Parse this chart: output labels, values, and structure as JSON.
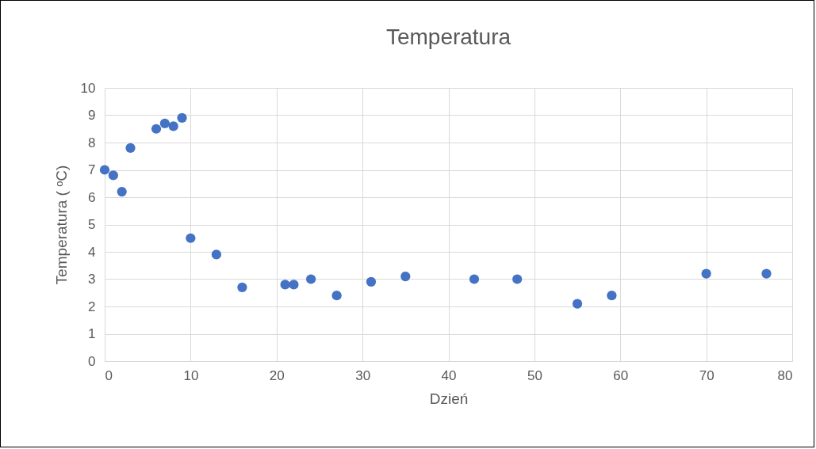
{
  "chart_data": {
    "type": "scatter",
    "title": "Temperatura",
    "xlabel": "Dzień",
    "ylabel": "Temperatura ( ᵒC)",
    "x": [
      0,
      1,
      2,
      3,
      6,
      7,
      8,
      9,
      10,
      13,
      16,
      21,
      22,
      24,
      27,
      31,
      35,
      43,
      48,
      55,
      59,
      70,
      77
    ],
    "values": [
      7.0,
      6.8,
      6.2,
      7.8,
      8.5,
      8.7,
      8.6,
      8.9,
      4.5,
      3.9,
      2.7,
      2.8,
      2.8,
      3.0,
      2.4,
      2.9,
      3.1,
      3.0,
      3.0,
      2.1,
      2.4,
      3.2,
      3.2
    ],
    "color": "#4472c4",
    "marker": "circle",
    "xlim": [
      0,
      80
    ],
    "xticks": [
      0,
      10,
      20,
      30,
      40,
      50,
      60,
      70,
      80
    ],
    "ylim": [
      0,
      10
    ],
    "yticks": [
      0,
      1,
      2,
      3,
      4,
      5,
      6,
      7,
      8,
      9,
      10
    ],
    "grid": true
  }
}
